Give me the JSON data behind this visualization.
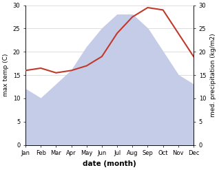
{
  "months": [
    "Jan",
    "Feb",
    "Mar",
    "Apr",
    "May",
    "Jun",
    "Jul",
    "Aug",
    "Sep",
    "Oct",
    "Nov",
    "Dec"
  ],
  "max_temp": [
    12,
    10,
    13,
    16,
    21,
    25,
    28,
    28,
    25,
    20,
    15,
    13
  ],
  "precipitation": [
    16,
    16.5,
    15.5,
    16,
    17,
    19,
    24,
    27.5,
    29.5,
    29,
    24,
    19
  ],
  "temp_color": "#c0392b",
  "precip_fill_color": "#c5cce8",
  "xlabel": "date (month)",
  "ylabel_left": "max temp (C)",
  "ylabel_right": "med. precipitation (kg/m2)",
  "ylim_left": [
    0,
    30
  ],
  "ylim_right": [
    0,
    30
  ],
  "yticks_left": [
    0,
    5,
    10,
    15,
    20,
    25,
    30
  ],
  "yticks_right": [
    0,
    5,
    10,
    15,
    20,
    25,
    30
  ],
  "background_color": "#ffffff",
  "grid_color": "#d0d0d0"
}
